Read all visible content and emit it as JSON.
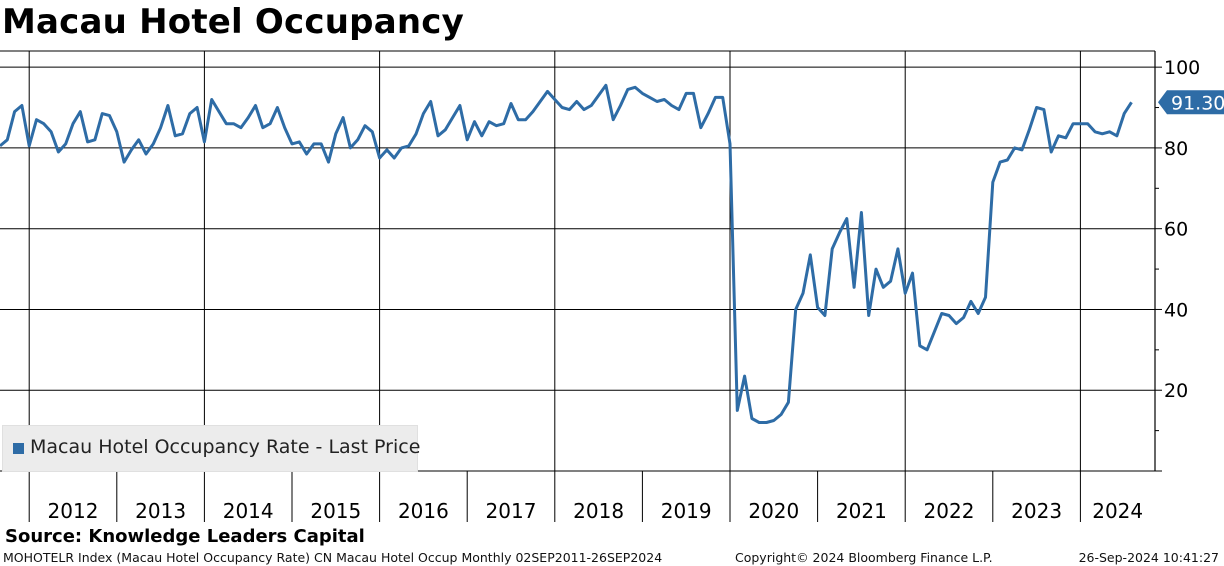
{
  "header": {
    "title": "Macau Hotel Occupancy"
  },
  "legend": {
    "label": "Macau Hotel Occupancy Rate - Last Price"
  },
  "footer": {
    "source": "Source: Knowledge Leaders Capital",
    "details": "MOHOTELR Index (Macau Hotel Occupancy Rate) CN Macau Hotel Occup  Monthly 02SEP2011-26SEP2024",
    "copyright": "Copyright© 2024 Bloomberg Finance L.P.",
    "timestamp": "26-Sep-2024 10:41:27"
  },
  "colors": {
    "line": "#2e6ca6",
    "badge": "#2e6ca6"
  },
  "chart_data": {
    "type": "line",
    "title": "Macau Hotel Occupancy",
    "x_start": "2011-09",
    "x_end": "2024-08",
    "frequency": "monthly",
    "year_labels": [
      "2012",
      "2013",
      "2014",
      "2015",
      "2016",
      "2017",
      "2018",
      "2019",
      "2020",
      "2021",
      "2022",
      "2023",
      "2024"
    ],
    "y_ticks": [
      20,
      40,
      60,
      80,
      100
    ],
    "ylim": [
      0,
      104
    ],
    "y_axis_side": "right",
    "grid": true,
    "legend_position": "bottom-left",
    "last_value": 91.3,
    "last_value_label": "91.30",
    "series": [
      {
        "name": "Macau Hotel Occupancy Rate - Last Price",
        "values": [
          80.5,
          82,
          89,
          90.5,
          80.5,
          87,
          86,
          84,
          79,
          81,
          86,
          89,
          81.5,
          82,
          88.5,
          88,
          84,
          76.5,
          79.5,
          82,
          78.5,
          81,
          85,
          90.5,
          83,
          83.5,
          88.5,
          90,
          81.5,
          92,
          89,
          86,
          86,
          85,
          87.5,
          90.5,
          85,
          86,
          90,
          85,
          81,
          81.5,
          78.5,
          81,
          81,
          76.5,
          83.5,
          87.5,
          80,
          82,
          85.5,
          84,
          77.5,
          79.5,
          77.5,
          80,
          80.5,
          83.5,
          88.5,
          91.5,
          83,
          84.5,
          87.5,
          90.5,
          82,
          86.5,
          83,
          86.5,
          85.5,
          86,
          91,
          87,
          87,
          89,
          91.5,
          94,
          92,
          90,
          89.5,
          91.5,
          89.5,
          90.5,
          93,
          95.5,
          87,
          90.5,
          94.5,
          95,
          93.5,
          92.5,
          91.5,
          92,
          90.5,
          89.5,
          93.5,
          93.5,
          85,
          88.5,
          92.5,
          92.5,
          81,
          15,
          23.5,
          13,
          12,
          12,
          12.5,
          14,
          17,
          40,
          44,
          53.5,
          40.5,
          38.5,
          55,
          59,
          62.5,
          45.5,
          64,
          38.5,
          50,
          45.5,
          47,
          55,
          44,
          49,
          31,
          30,
          34.5,
          39,
          38.5,
          36.5,
          38,
          42,
          39,
          43,
          71.5,
          76.5,
          77,
          80,
          79.5,
          84.5,
          90,
          89.5,
          79,
          83,
          82.5,
          86,
          86,
          86,
          84,
          83.5,
          84,
          83,
          88.5,
          91.3
        ]
      }
    ]
  }
}
